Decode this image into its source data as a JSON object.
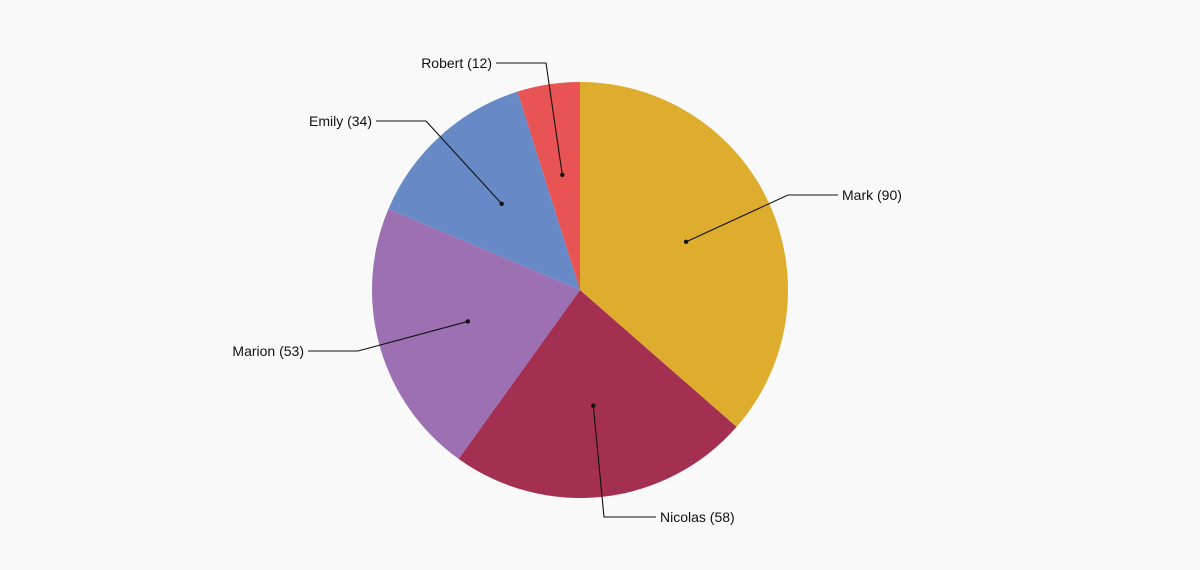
{
  "chart_data": {
    "type": "pie",
    "title": "",
    "start_angle_deg": 0,
    "direction": "clockwise",
    "legend": "none",
    "slices": [
      {
        "name": "Mark",
        "value": 90,
        "label": "Mark (90)",
        "color": "#DFAD2D"
      },
      {
        "name": "Nicolas",
        "value": 58,
        "label": "Nicolas (58)",
        "color": "#A33051"
      },
      {
        "name": "Marion",
        "value": 53,
        "label": "Marion (53)",
        "color": "#9C70B3"
      },
      {
        "name": "Emily",
        "value": 34,
        "label": "Emily (34)",
        "color": "#6789C6"
      },
      {
        "name": "Robert",
        "value": 12,
        "label": "Robert (12)",
        "color": "#E85353"
      }
    ]
  }
}
